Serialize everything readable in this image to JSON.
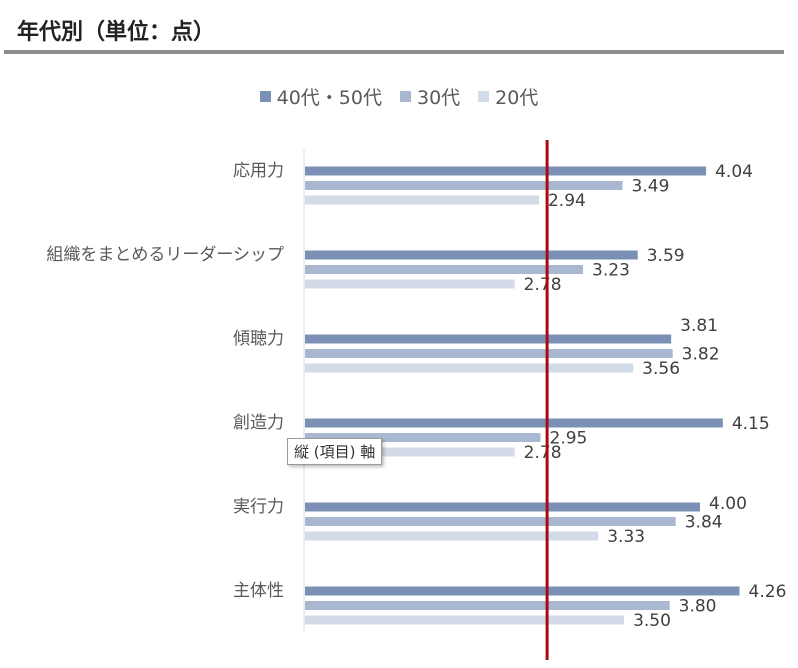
{
  "header": {
    "title": "年代別（単位：点）"
  },
  "tooltip": {
    "text": "縦 (項目) 軸"
  },
  "colors": {
    "series_40_50": "#7b90b5",
    "series_30": "#a9b8d0",
    "series_20": "#d2dbe7",
    "reference_line": "#a80a12"
  },
  "chart_data": {
    "type": "bar",
    "orientation": "horizontal",
    "categories": [
      "応用力",
      "組織をまとめるリーダーシップ",
      "傾聴力",
      "創造力",
      "実行力",
      "主体性"
    ],
    "series": [
      {
        "name": "40代・50代",
        "values": [
          4.04,
          3.59,
          3.81,
          4.15,
          4.0,
          4.26
        ]
      },
      {
        "name": "30代",
        "values": [
          3.49,
          3.23,
          3.82,
          2.95,
          3.84,
          3.8
        ]
      },
      {
        "name": "20代",
        "values": [
          2.94,
          2.78,
          3.56,
          2.78,
          3.33,
          3.5
        ]
      }
    ],
    "data_labels": [
      [
        "4.04",
        "3.49",
        "2.94"
      ],
      [
        "3.59",
        "3.23",
        "2.78"
      ],
      [
        "3.81",
        "3.82",
        "3.56"
      ],
      [
        "4.15",
        "2.95",
        "2.78"
      ],
      [
        "4.00",
        "3.84",
        "3.33"
      ],
      [
        "4.26",
        "3.80",
        "3.50"
      ]
    ],
    "reference_value": 3.0,
    "xlim": [
      1.4,
      4.5
    ],
    "legend_position": "top",
    "grid": false
  }
}
